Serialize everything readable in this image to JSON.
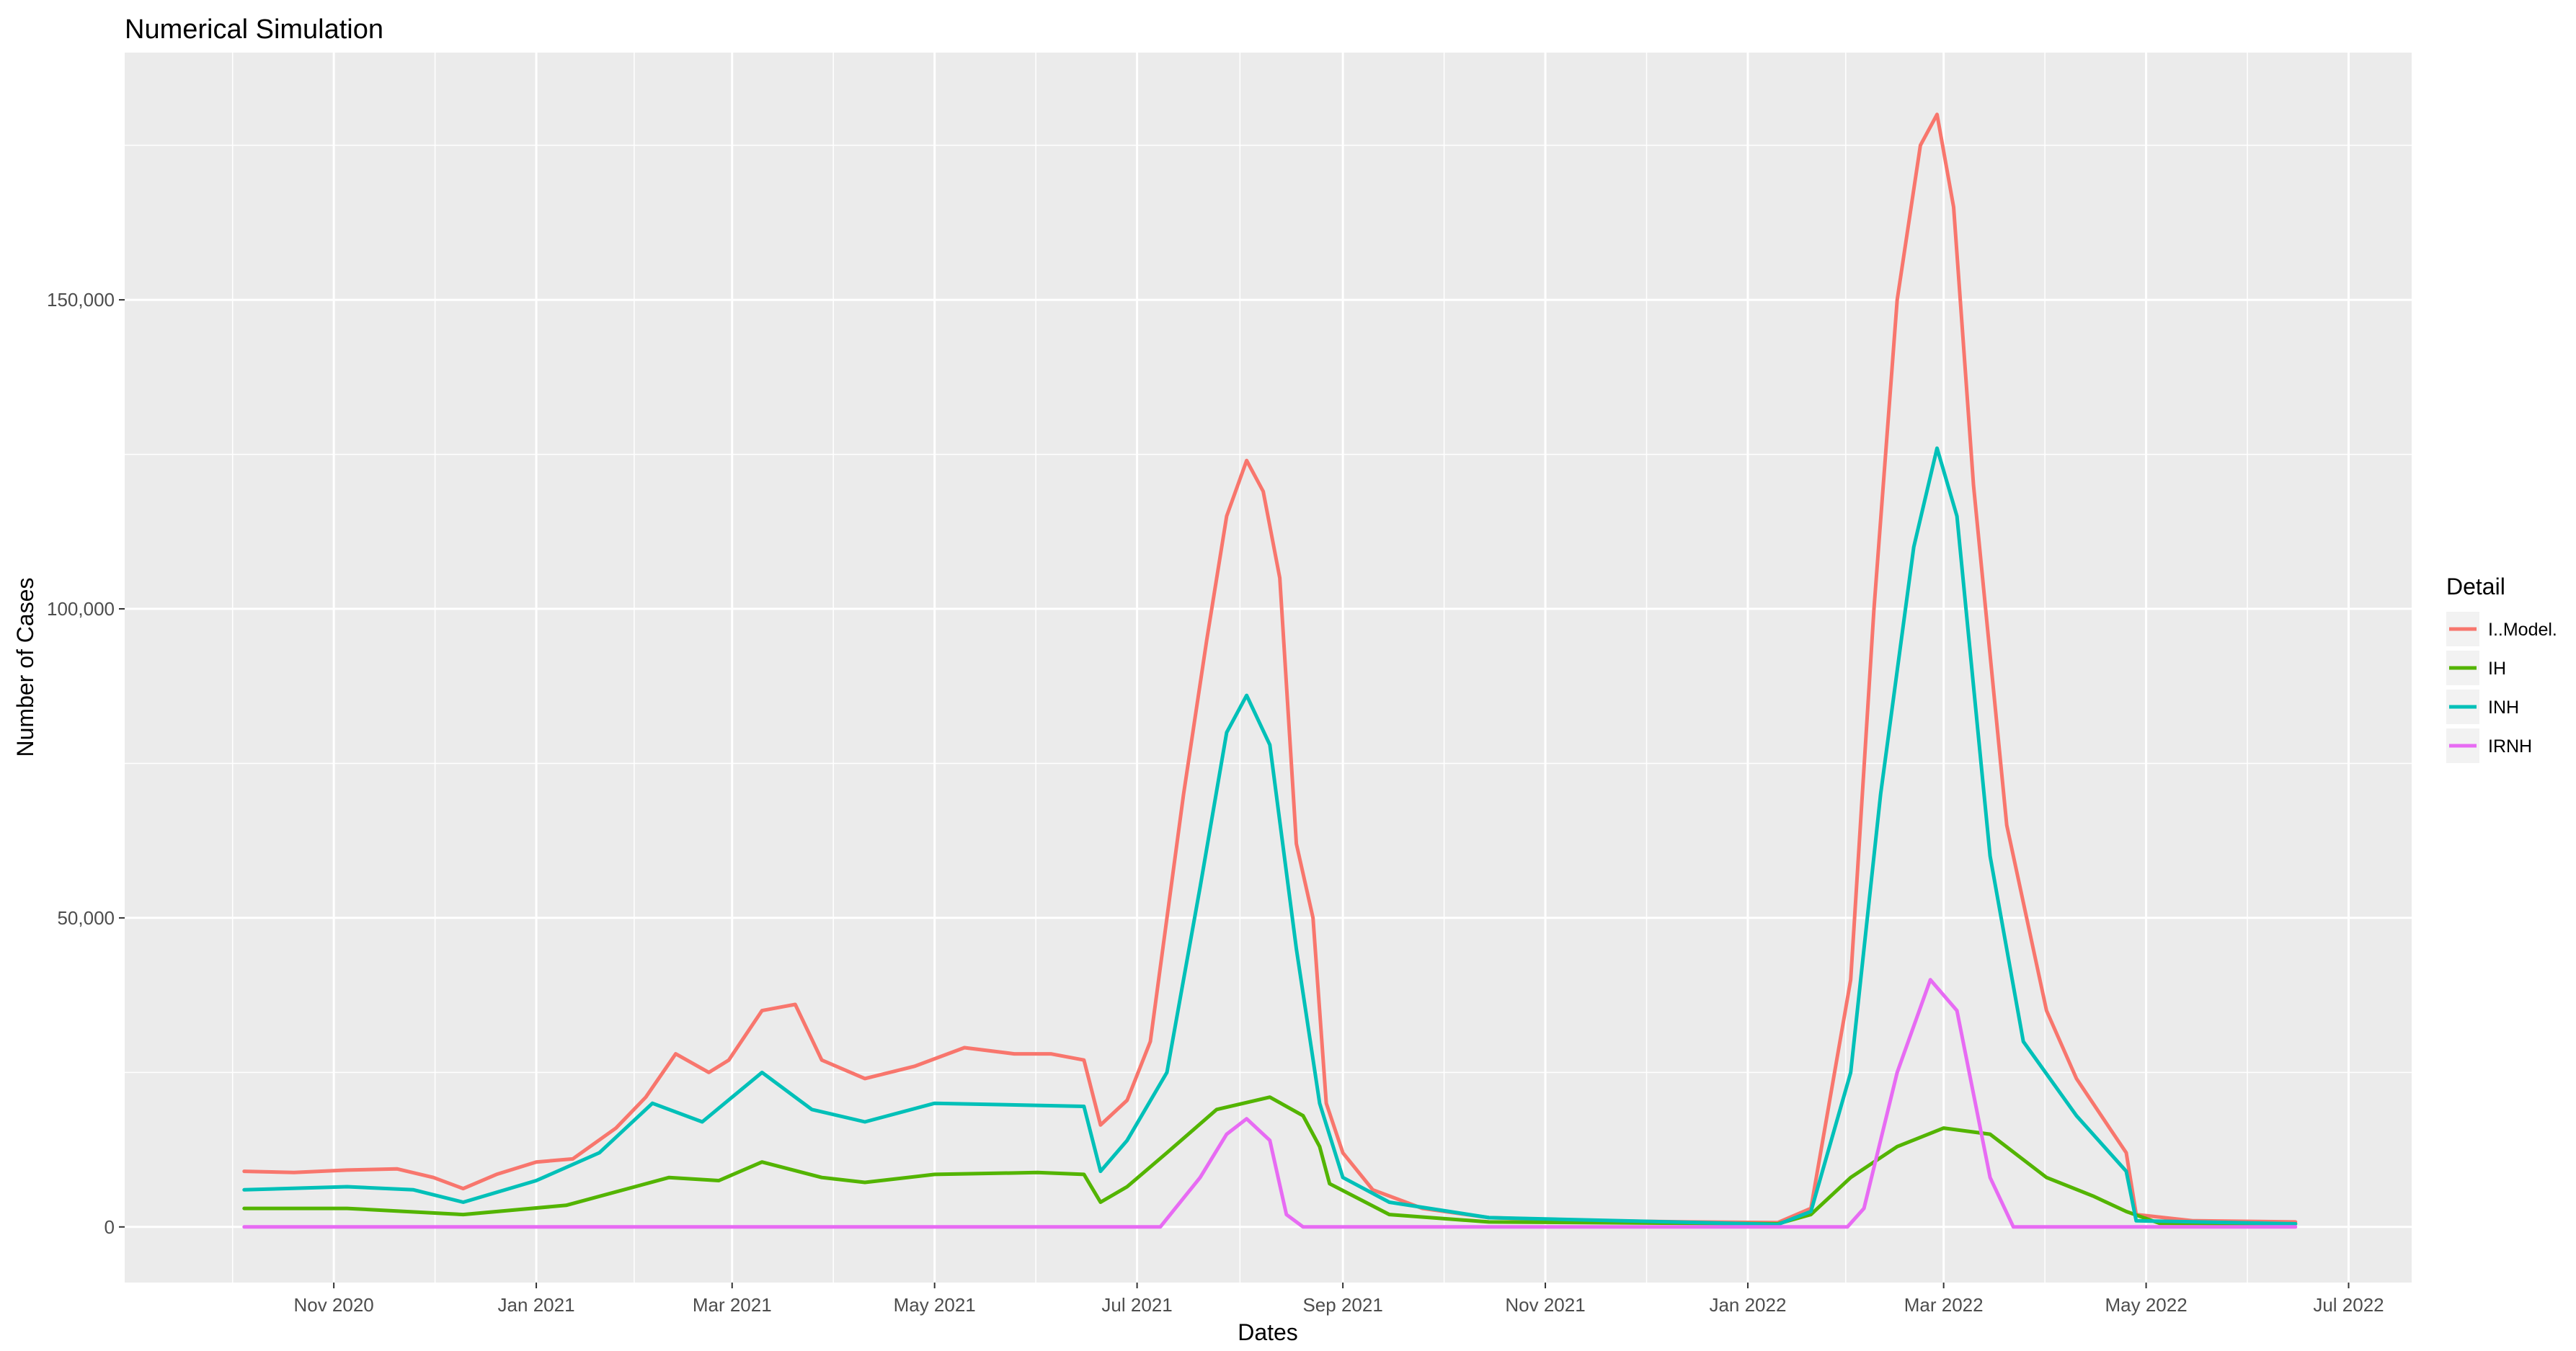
{
  "chart_data": {
    "type": "line",
    "title": "Numerical Simulation",
    "xlabel": "Dates",
    "ylabel": "Number of Cases",
    "x_range": [
      "2020-08-30",
      "2022-07-20"
    ],
    "ylim": [
      -9000,
      190000
    ],
    "x_ticks": [
      {
        "date": "2020-11-01",
        "label": "Nov 2020"
      },
      {
        "date": "2021-01-01",
        "label": "Jan 2021"
      },
      {
        "date": "2021-03-01",
        "label": "Mar 2021"
      },
      {
        "date": "2021-05-01",
        "label": "May 2021"
      },
      {
        "date": "2021-07-01",
        "label": "Jul 2021"
      },
      {
        "date": "2021-09-01",
        "label": "Sep 2021"
      },
      {
        "date": "2021-11-01",
        "label": "Nov 2021"
      },
      {
        "date": "2022-01-01",
        "label": "Jan 2022"
      },
      {
        "date": "2022-03-01",
        "label": "Mar 2022"
      },
      {
        "date": "2022-05-01",
        "label": "May 2022"
      },
      {
        "date": "2022-07-01",
        "label": "Jul 2022"
      }
    ],
    "y_ticks": [
      {
        "value": 0,
        "label": "0"
      },
      {
        "value": 50000,
        "label": "50,000"
      },
      {
        "value": 100000,
        "label": "100,000"
      },
      {
        "value": 150000,
        "label": "150,000"
      }
    ],
    "grid": true,
    "legend": {
      "title": "Detail",
      "position": "right"
    },
    "series": [
      {
        "name": "I..Model.",
        "color": "#F8766D",
        "points": [
          [
            "2020-10-05",
            9000
          ],
          [
            "2020-10-20",
            8800
          ],
          [
            "2020-11-05",
            9200
          ],
          [
            "2020-11-20",
            9400
          ],
          [
            "2020-12-01",
            8000
          ],
          [
            "2020-12-10",
            6200
          ],
          [
            "2020-12-20",
            8500
          ],
          [
            "2021-01-01",
            10500
          ],
          [
            "2021-01-12",
            11000
          ],
          [
            "2021-01-25",
            16000
          ],
          [
            "2021-02-03",
            21000
          ],
          [
            "2021-02-12",
            28000
          ],
          [
            "2021-02-22",
            25000
          ],
          [
            "2021-02-28",
            27000
          ],
          [
            "2021-03-10",
            35000
          ],
          [
            "2021-03-20",
            36000
          ],
          [
            "2021-03-28",
            27000
          ],
          [
            "2021-04-10",
            24000
          ],
          [
            "2021-04-25",
            26000
          ],
          [
            "2021-05-10",
            29000
          ],
          [
            "2021-05-25",
            28000
          ],
          [
            "2021-06-05",
            28000
          ],
          [
            "2021-06-15",
            27000
          ],
          [
            "2021-06-20",
            16500
          ],
          [
            "2021-06-28",
            20500
          ],
          [
            "2021-07-05",
            30000
          ],
          [
            "2021-07-15",
            70000
          ],
          [
            "2021-07-22",
            95000
          ],
          [
            "2021-07-28",
            115000
          ],
          [
            "2021-08-03",
            124000
          ],
          [
            "2021-08-08",
            119000
          ],
          [
            "2021-08-13",
            105000
          ],
          [
            "2021-08-18",
            62000
          ],
          [
            "2021-08-23",
            50000
          ],
          [
            "2021-08-27",
            20000
          ],
          [
            "2021-09-01",
            12000
          ],
          [
            "2021-09-10",
            6000
          ],
          [
            "2021-09-25",
            3000
          ],
          [
            "2021-10-15",
            1500
          ],
          [
            "2021-11-15",
            1000
          ],
          [
            "2021-12-15",
            800
          ],
          [
            "2022-01-10",
            700
          ],
          [
            "2022-01-20",
            3000
          ],
          [
            "2022-02-01",
            40000
          ],
          [
            "2022-02-08",
            100000
          ],
          [
            "2022-02-15",
            150000
          ],
          [
            "2022-02-22",
            175000
          ],
          [
            "2022-02-27",
            180000
          ],
          [
            "2022-03-04",
            165000
          ],
          [
            "2022-03-10",
            120000
          ],
          [
            "2022-03-20",
            65000
          ],
          [
            "2022-04-01",
            35000
          ],
          [
            "2022-04-10",
            24000
          ],
          [
            "2022-04-20",
            16000
          ],
          [
            "2022-04-25",
            12000
          ],
          [
            "2022-04-28",
            2000
          ],
          [
            "2022-05-15",
            1000
          ],
          [
            "2022-06-15",
            800
          ]
        ]
      },
      {
        "name": "IH",
        "color": "#53B400",
        "points": [
          [
            "2020-10-05",
            3000
          ],
          [
            "2020-11-05",
            3000
          ],
          [
            "2020-12-10",
            2000
          ],
          [
            "2021-01-10",
            3500
          ],
          [
            "2021-02-10",
            8000
          ],
          [
            "2021-02-25",
            7500
          ],
          [
            "2021-03-10",
            10500
          ],
          [
            "2021-03-28",
            8000
          ],
          [
            "2021-04-10",
            7200
          ],
          [
            "2021-05-01",
            8500
          ],
          [
            "2021-06-01",
            8800
          ],
          [
            "2021-06-15",
            8500
          ],
          [
            "2021-06-20",
            4000
          ],
          [
            "2021-06-28",
            6500
          ],
          [
            "2021-07-10",
            12000
          ],
          [
            "2021-07-25",
            19000
          ],
          [
            "2021-08-10",
            21000
          ],
          [
            "2021-08-20",
            18000
          ],
          [
            "2021-08-25",
            13000
          ],
          [
            "2021-08-28",
            7000
          ],
          [
            "2021-09-15",
            2000
          ],
          [
            "2021-10-15",
            800
          ],
          [
            "2022-01-10",
            500
          ],
          [
            "2022-01-20",
            2000
          ],
          [
            "2022-02-01",
            8000
          ],
          [
            "2022-02-15",
            13000
          ],
          [
            "2022-03-01",
            16000
          ],
          [
            "2022-03-15",
            15000
          ],
          [
            "2022-04-01",
            8000
          ],
          [
            "2022-04-15",
            5000
          ],
          [
            "2022-04-25",
            2500
          ],
          [
            "2022-05-05",
            600
          ],
          [
            "2022-06-15",
            500
          ]
        ]
      },
      {
        "name": "INH",
        "color": "#00C0B8",
        "points": [
          [
            "2020-10-05",
            6000
          ],
          [
            "2020-11-05",
            6500
          ],
          [
            "2020-11-25",
            6000
          ],
          [
            "2020-12-10",
            4000
          ],
          [
            "2021-01-01",
            7500
          ],
          [
            "2021-01-20",
            12000
          ],
          [
            "2021-02-05",
            20000
          ],
          [
            "2021-02-20",
            17000
          ],
          [
            "2021-03-10",
            25000
          ],
          [
            "2021-03-25",
            19000
          ],
          [
            "2021-04-10",
            17000
          ],
          [
            "2021-05-01",
            20000
          ],
          [
            "2021-06-15",
            19500
          ],
          [
            "2021-06-20",
            9000
          ],
          [
            "2021-06-28",
            14000
          ],
          [
            "2021-07-10",
            25000
          ],
          [
            "2021-07-20",
            55000
          ],
          [
            "2021-07-28",
            80000
          ],
          [
            "2021-08-03",
            86000
          ],
          [
            "2021-08-10",
            78000
          ],
          [
            "2021-08-18",
            45000
          ],
          [
            "2021-08-25",
            20000
          ],
          [
            "2021-09-01",
            8000
          ],
          [
            "2021-09-15",
            4000
          ],
          [
            "2021-10-15",
            1500
          ],
          [
            "2022-01-10",
            400
          ],
          [
            "2022-01-20",
            2500
          ],
          [
            "2022-02-01",
            25000
          ],
          [
            "2022-02-10",
            70000
          ],
          [
            "2022-02-20",
            110000
          ],
          [
            "2022-02-27",
            126000
          ],
          [
            "2022-03-05",
            115000
          ],
          [
            "2022-03-15",
            60000
          ],
          [
            "2022-03-25",
            30000
          ],
          [
            "2022-04-10",
            18000
          ],
          [
            "2022-04-25",
            9000
          ],
          [
            "2022-04-28",
            1000
          ],
          [
            "2022-06-15",
            500
          ]
        ]
      },
      {
        "name": "IRNH",
        "color": "#E76BF3",
        "points": [
          [
            "2020-10-05",
            0
          ],
          [
            "2021-06-30",
            0
          ],
          [
            "2021-07-08",
            0
          ],
          [
            "2021-07-20",
            8000
          ],
          [
            "2021-07-28",
            15000
          ],
          [
            "2021-08-03",
            17500
          ],
          [
            "2021-08-10",
            14000
          ],
          [
            "2021-08-15",
            2000
          ],
          [
            "2021-08-20",
            0
          ],
          [
            "2022-01-31",
            0
          ],
          [
            "2022-02-05",
            3000
          ],
          [
            "2022-02-15",
            25000
          ],
          [
            "2022-02-25",
            40000
          ],
          [
            "2022-03-05",
            35000
          ],
          [
            "2022-03-15",
            8000
          ],
          [
            "2022-03-22",
            0
          ],
          [
            "2022-06-15",
            0
          ]
        ]
      }
    ]
  }
}
